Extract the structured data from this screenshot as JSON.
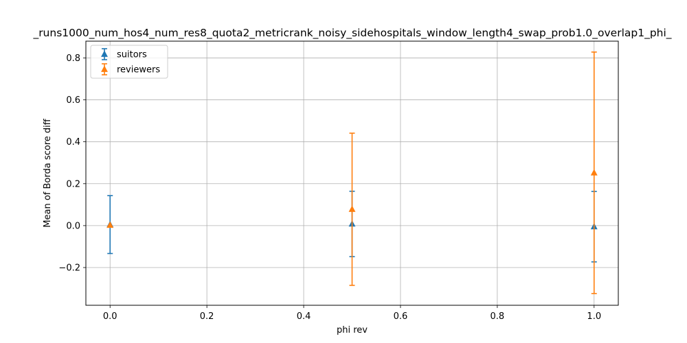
{
  "chart_data": {
    "type": "scatter",
    "title": "_runs1000_num_hos4_num_res8_quota2_metricrank_noisy_sidehospitals_window_length4_swap_prob1.0_overlap1_phi_",
    "xlabel": "phi rev",
    "ylabel": "Mean of Borda score diff",
    "xlim": [
      -0.05,
      1.05
    ],
    "ylim": [
      -0.38,
      0.88
    ],
    "xticks": [
      0.0,
      0.2,
      0.4,
      0.6,
      0.8,
      1.0
    ],
    "xtick_labels": [
      "0.0",
      "0.2",
      "0.4",
      "0.6",
      "0.8",
      "1.0"
    ],
    "yticks": [
      -0.2,
      0.0,
      0.2,
      0.4,
      0.6,
      0.8
    ],
    "ytick_labels": [
      "−0.2",
      "0.0",
      "0.2",
      "0.4",
      "0.6",
      "0.8"
    ],
    "grid": true,
    "legend_position": "top-left",
    "series": [
      {
        "name": "suitors",
        "color": "#1f77b4",
        "marker": "triangle-up",
        "x": [
          0.0,
          0.5,
          1.0
        ],
        "y": [
          0.005,
          0.008,
          -0.005
        ],
        "yerr": [
          0.138,
          0.156,
          0.168
        ]
      },
      {
        "name": "reviewers",
        "color": "#ff7f0e",
        "marker": "triangle-up",
        "x": [
          0.0,
          0.5,
          1.0
        ],
        "y": [
          0.002,
          0.078,
          0.252
        ],
        "yerr": [
          0.0,
          0.363,
          0.576
        ]
      }
    ]
  }
}
